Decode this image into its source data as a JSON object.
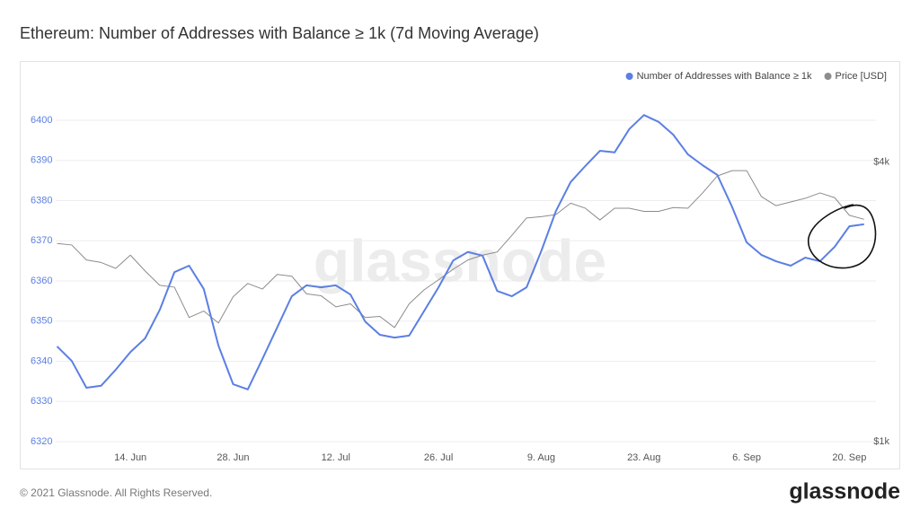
{
  "chart_data": {
    "type": "line",
    "title": "Ethereum: Number of Addresses with Balance ≥ 1k (7d Moving Average)",
    "watermark": "glassnode",
    "categories": [
      null,
      null,
      null,
      null,
      null,
      "14. Jun",
      null,
      null,
      null,
      null,
      null,
      null,
      "28. Jun",
      null,
      null,
      null,
      null,
      null,
      null,
      "12. Jul",
      null,
      null,
      null,
      null,
      null,
      null,
      "26. Jul",
      null,
      null,
      null,
      null,
      null,
      null,
      "9. Aug",
      null,
      null,
      null,
      null,
      null,
      null,
      "23. Aug",
      null,
      null,
      null,
      null,
      null,
      null,
      "6. Sep",
      null,
      null,
      null,
      null,
      null,
      null,
      "20. Sep",
      null
    ],
    "series": [
      {
        "name": "Number of Addresses with Balance ≥ 1k",
        "color": "#5b7fe3",
        "axis": "y",
        "values": [
          6343.7,
          6340.1,
          6333.4,
          6333.9,
          6337.9,
          6342.3,
          6345.7,
          6352.8,
          6362.2,
          6363.8,
          6358.0,
          6343.9,
          6334.3,
          6333.0,
          6340.6,
          6348.4,
          6356.2,
          6358.9,
          6358.4,
          6358.9,
          6356.6,
          6349.9,
          6346.6,
          6345.9,
          6346.4,
          6352.4,
          6358.4,
          6365.1,
          6367.2,
          6366.3,
          6357.5,
          6356.2,
          6358.4,
          6367.4,
          6377.4,
          6384.6,
          6388.6,
          6392.4,
          6392.0,
          6397.8,
          6401.3,
          6399.6,
          6396.4,
          6391.5,
          6388.8,
          6386.4,
          6378.5,
          6369.6,
          6366.5,
          6364.9,
          6363.8,
          6365.8,
          6364.9,
          6368.5,
          6373.6,
          6374.1
        ]
      },
      {
        "name": "Price [USD]",
        "color": "#8c8c8c",
        "axis": "y2",
        "values": [
          2670,
          2650,
          2460,
          2430,
          2360,
          2520,
          2330,
          2170,
          2150,
          1850,
          1910,
          1800,
          2050,
          2190,
          2130,
          2290,
          2270,
          2080,
          2060,
          1950,
          1980,
          1850,
          1860,
          1760,
          1980,
          2120,
          2230,
          2350,
          2460,
          2520,
          2560,
          2780,
          3030,
          3050,
          3080,
          3260,
          3180,
          3000,
          3180,
          3180,
          3130,
          3130,
          3190,
          3180,
          3430,
          3730,
          3830,
          3830,
          3370,
          3220,
          3280,
          3340,
          3430,
          3350,
          3070,
          3010
        ]
      }
    ],
    "ylim": [
      6320,
      6410
    ],
    "yticks": [
      6320,
      6330,
      6340,
      6350,
      6360,
      6370,
      6380,
      6390,
      6400
    ],
    "y2lim": [
      1000,
      6000
    ],
    "y2ticks": [
      {
        "value": 1000,
        "label": "$1k"
      },
      {
        "value": 4000,
        "label": "$4k"
      }
    ],
    "y2scale": "log",
    "grid": true,
    "legend": "top-right"
  },
  "footer": "© 2021 Glassnode. All Rights Reserved.",
  "logo": "glassnode"
}
